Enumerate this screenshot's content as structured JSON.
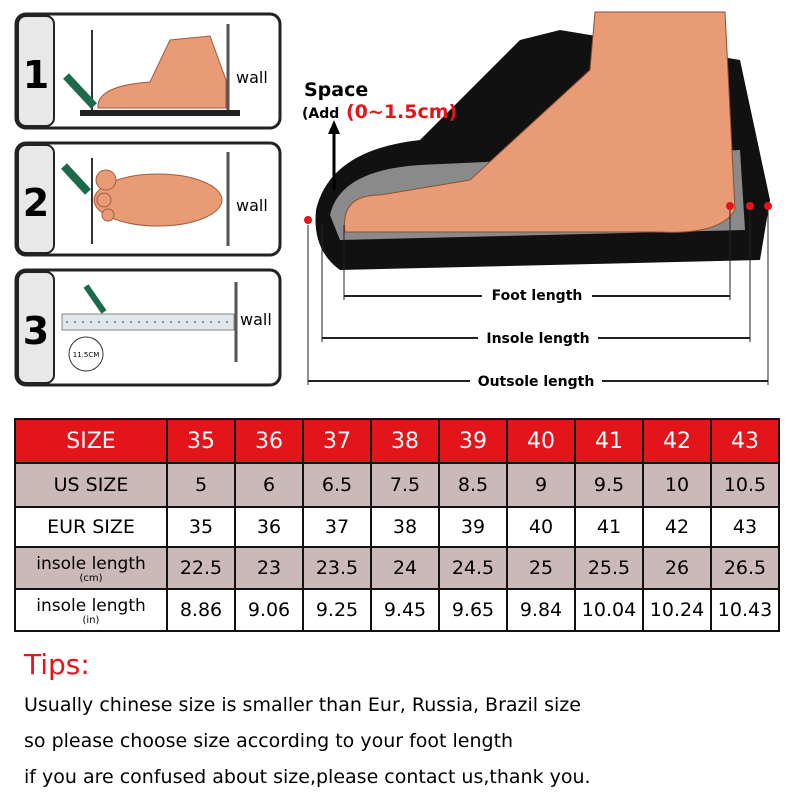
{
  "steps": [
    {
      "number": "1",
      "wall": "wall"
    },
    {
      "number": "2",
      "wall": "wall"
    },
    {
      "number": "3",
      "wall": "wall",
      "ruler": "11.5CM"
    }
  ],
  "diagram": {
    "space": "Space",
    "add_prefix": "(Add",
    "add_range": "(0~1.5cm)",
    "foot_length": "Foot length",
    "insole_length": "Insole length",
    "outsole_length": "Outsole length"
  },
  "table": {
    "header": {
      "label": "SIZE",
      "values": [
        35,
        36,
        37,
        38,
        39,
        40,
        41,
        42,
        43
      ]
    },
    "rows": [
      {
        "label": "US SIZE",
        "values": [
          5,
          6,
          6.5,
          7.5,
          8.5,
          9,
          9.5,
          10,
          10.5
        ]
      },
      {
        "label": "EUR SIZE",
        "values": [
          35,
          36,
          37,
          38,
          39,
          40,
          41,
          42,
          43
        ]
      },
      {
        "label": "insole length",
        "unit": "(cm)",
        "values": [
          22.5,
          23,
          23.5,
          24,
          24.5,
          25,
          25.5,
          26,
          26.5
        ]
      },
      {
        "label": "insole length",
        "unit": "(in)",
        "values": [
          8.86,
          9.06,
          9.25,
          9.45,
          9.65,
          9.84,
          10.04,
          10.24,
          10.43
        ]
      }
    ]
  },
  "tips": {
    "title": "Tips:",
    "lines": [
      "Usually chinese size is smaller than Eur, Russia, Brazil size",
      "so please choose size according to your foot length",
      "if you are confused about size,please contact us,thank you."
    ]
  }
}
